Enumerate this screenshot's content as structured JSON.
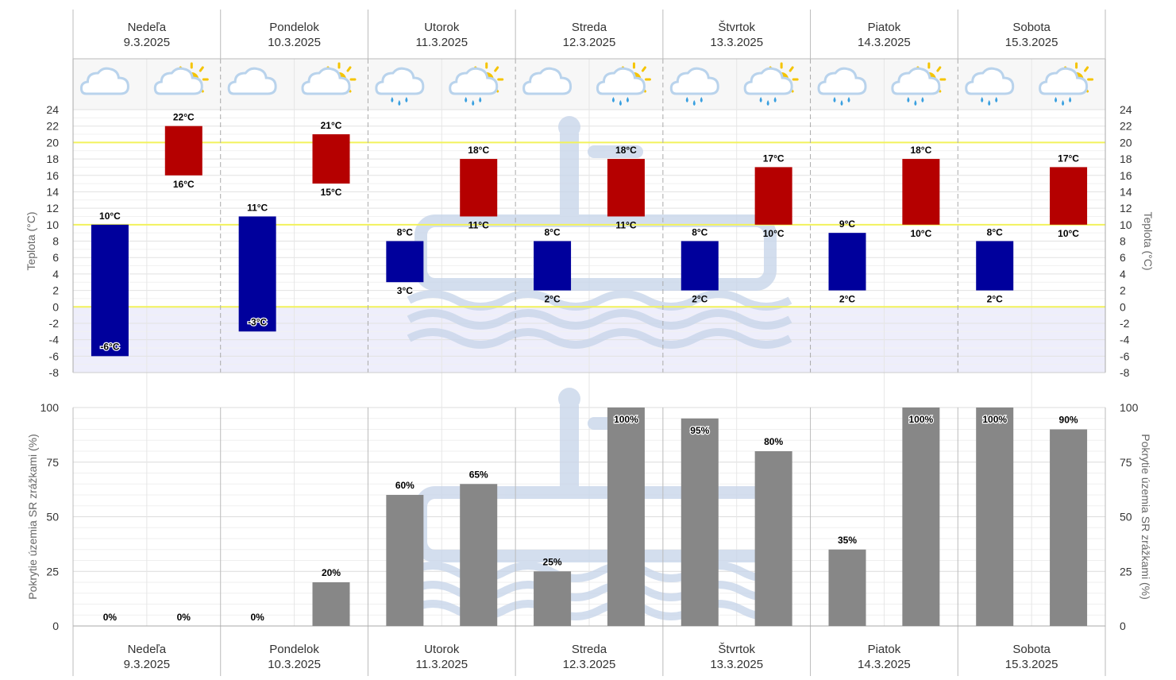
{
  "days": [
    {
      "name": "Nedeľa",
      "date": "9.3.2025"
    },
    {
      "name": "Pondelok",
      "date": "10.3.2025"
    },
    {
      "name": "Utorok",
      "date": "11.3.2025"
    },
    {
      "name": "Streda",
      "date": "12.3.2025"
    },
    {
      "name": "Štvrtok",
      "date": "13.3.2025"
    },
    {
      "name": "Piatok",
      "date": "14.3.2025"
    },
    {
      "name": "Sobota",
      "date": "15.3.2025"
    }
  ],
  "icons": [
    [
      "moon-cloud-icon",
      "sun-cloud-icon"
    ],
    [
      "moon-cloud-icon",
      "sun-cloud-icon"
    ],
    [
      "rain-cloud-icon",
      "sun-rain-cloud-icon"
    ],
    [
      "cloud-icon",
      "sun-rain-cloud-icon"
    ],
    [
      "rain-cloud-icon",
      "sun-rain-cloud-icon"
    ],
    [
      "rain-cloud-icon",
      "sun-rain-cloud-icon"
    ],
    [
      "rain-cloud-icon",
      "sun-rain-cloud-icon"
    ]
  ],
  "colors": {
    "night_bar": "#00009c",
    "day_bar": "#b50000",
    "precip_bar": "#878787",
    "threshold_line": "#f2f25c",
    "negative_zone": "#eeeefb",
    "watermark": "#c9d6ea"
  },
  "chart_data": [
    {
      "type": "bar",
      "kind": "temperature-range",
      "ylabel": "Teplota (°C)",
      "ylim": [
        -8,
        24
      ],
      "yticks": [
        24,
        22,
        20,
        18,
        16,
        14,
        12,
        10,
        8,
        6,
        4,
        2,
        0,
        -2,
        -4,
        -6,
        -8
      ],
      "threshold_lines": [
        20,
        10,
        0
      ],
      "categories": [
        "Nedeľa 9.3.2025",
        "Pondelok 10.3.2025",
        "Utorok 11.3.2025",
        "Streda 12.3.2025",
        "Štvrtok 13.3.2025",
        "Piatok 14.3.2025",
        "Sobota 15.3.2025"
      ],
      "series": [
        {
          "values": [
            {
              "min": -6,
              "max": 10,
              "min_label": "-6°C",
              "max_label": "10°C"
            },
            {
              "min": -3,
              "max": 11,
              "min_label": "-3°C",
              "max_label": "11°C"
            },
            {
              "min": 3,
              "max": 8,
              "min_label": "3°C",
              "max_label": "8°C"
            },
            {
              "min": 2,
              "max": 8,
              "min_label": "2°C",
              "max_label": "8°C"
            },
            {
              "min": 2,
              "max": 8,
              "min_label": "2°C",
              "max_label": "8°C"
            },
            {
              "min": 2,
              "max": 9,
              "min_label": "2°C",
              "max_label": "9°C"
            },
            {
              "min": 2,
              "max": 8,
              "min_label": "2°C",
              "max_label": "8°C"
            }
          ]
        },
        {
          "values": [
            {
              "min": 16,
              "max": 22,
              "min_label": "16°C",
              "max_label": "22°C"
            },
            {
              "min": 15,
              "max": 21,
              "min_label": "15°C",
              "max_label": "21°C"
            },
            {
              "min": 11,
              "max": 18,
              "min_label": "11°C",
              "max_label": "18°C"
            },
            {
              "min": 11,
              "max": 18,
              "min_label": "11°C",
              "max_label": "18°C"
            },
            {
              "min": 10,
              "max": 17,
              "min_label": "10°C",
              "max_label": "17°C"
            },
            {
              "min": 10,
              "max": 18,
              "min_label": "10°C",
              "max_label": "18°C"
            },
            {
              "min": 10,
              "max": 17,
              "min_label": "10°C",
              "max_label": "17°C"
            }
          ]
        }
      ]
    },
    {
      "type": "bar",
      "kind": "precipitation-coverage",
      "ylabel": "Pokrytie územia SR zrážkami (%)",
      "ylim": [
        0,
        100
      ],
      "yticks": [
        100,
        75,
        50,
        25,
        0
      ],
      "categories": [
        "Nedeľa 9.3.2025",
        "Pondelok 10.3.2025",
        "Utorok 11.3.2025",
        "Streda 12.3.2025",
        "Štvrtok 13.3.2025",
        "Piatok 14.3.2025",
        "Sobota 15.3.2025"
      ],
      "series": [
        {
          "values": [
            0,
            0,
            60,
            25,
            95,
            35,
            100
          ],
          "labels": [
            "0%",
            "0%",
            "60%",
            "25%",
            "95%",
            "35%",
            "100%"
          ]
        },
        {
          "values": [
            0,
            20,
            65,
            100,
            80,
            100,
            90
          ],
          "labels": [
            "0%",
            "20%",
            "65%",
            "100%",
            "80%",
            "100%",
            "90%"
          ]
        }
      ]
    }
  ]
}
